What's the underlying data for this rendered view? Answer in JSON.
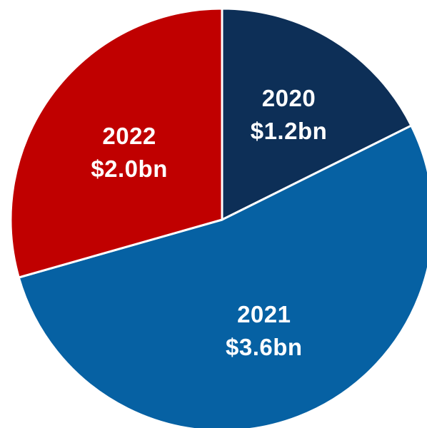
{
  "chart_data": {
    "type": "pie",
    "title": "",
    "slices": [
      {
        "category": "2020",
        "value": 1.2,
        "value_label": "$1.2bn",
        "color": "#0d2f57"
      },
      {
        "category": "2021",
        "value": 3.6,
        "value_label": "$3.6bn",
        "color": "#0661a3"
      },
      {
        "category": "2022",
        "value": 2.0,
        "value_label": "$2.0bn",
        "color": "#c00000"
      }
    ],
    "start_angle_deg": 0,
    "direction": "clockwise",
    "legend": "none"
  }
}
